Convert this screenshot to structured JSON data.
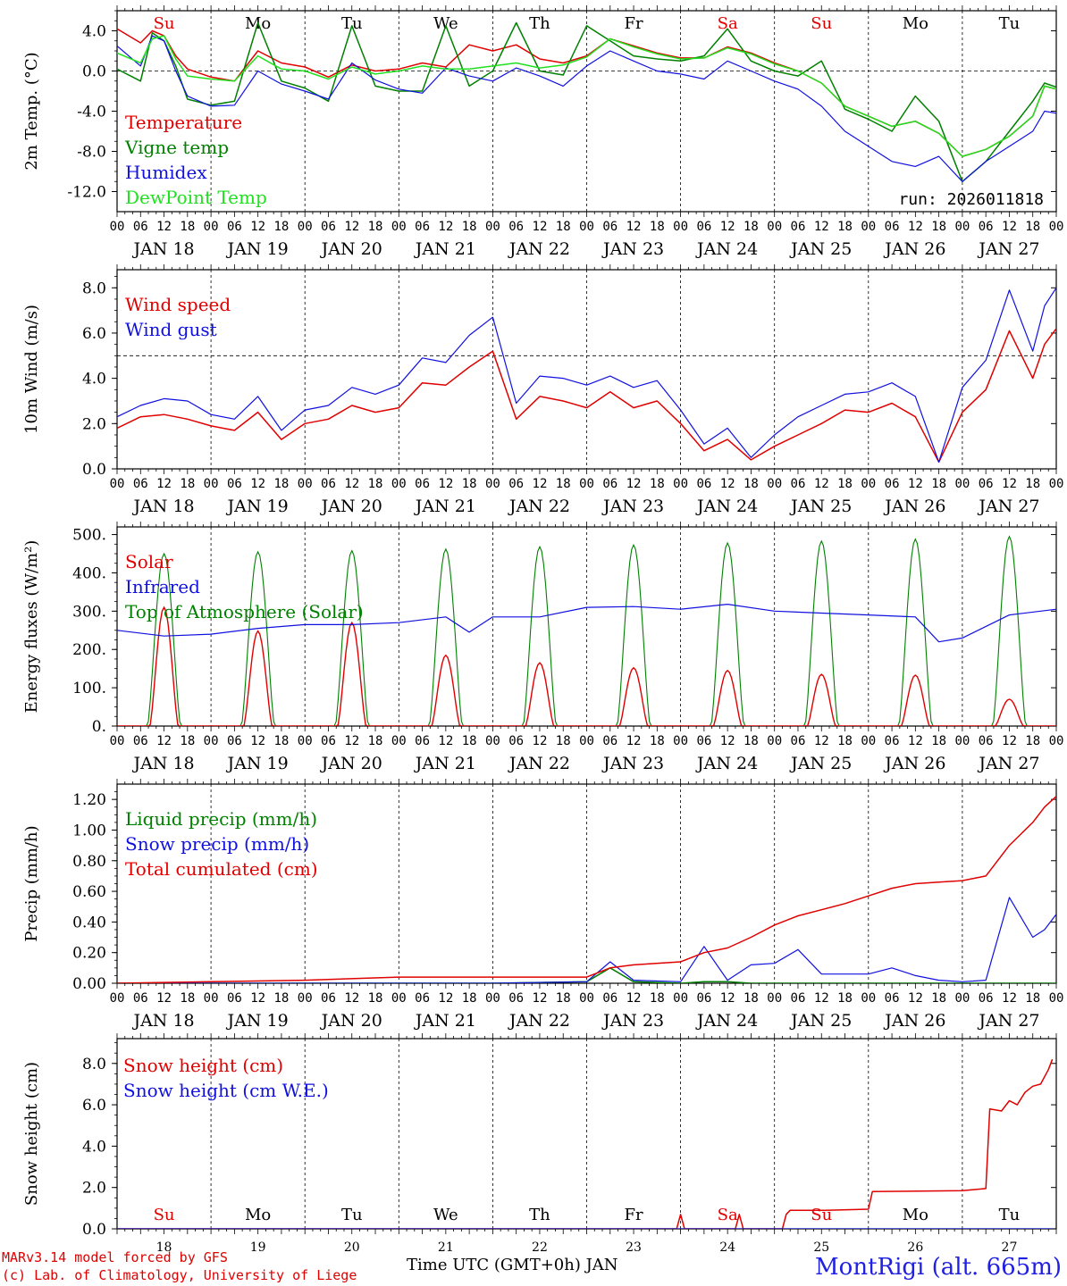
{
  "station": "MontRigi (alt. 665m)",
  "run_label": "run: 2026011818",
  "credit_line1": "MARv3.14 model forced by GFS",
  "credit_line2": "(c) Lab. of Climatology, University of Liege",
  "x_title": "Time UTC (GMT+0h) JAN",
  "colors": {
    "red": "#e00000",
    "green": "#008000",
    "blue": "#1010e0",
    "lightgreen": "#20e020",
    "weekend": "#e00000"
  },
  "days": [
    {
      "label": "JAN 18",
      "short": "18",
      "weekday": "Su",
      "weekend": true
    },
    {
      "label": "JAN 19",
      "short": "19",
      "weekday": "Mo",
      "weekend": false
    },
    {
      "label": "JAN 20",
      "short": "20",
      "weekday": "Tu",
      "weekend": false
    },
    {
      "label": "JAN 21",
      "short": "21",
      "weekday": "We",
      "weekend": false
    },
    {
      "label": "JAN 22",
      "short": "22",
      "weekday": "Th",
      "weekend": false
    },
    {
      "label": "JAN 23",
      "short": "23",
      "weekday": "Fr",
      "weekend": false
    },
    {
      "label": "JAN 24",
      "short": "24",
      "weekday": "Sa",
      "weekend": true
    },
    {
      "label": "JAN 25",
      "short": "25",
      "weekday": "Su",
      "weekend": true
    },
    {
      "label": "JAN 26",
      "short": "26",
      "weekday": "Mo",
      "weekend": false
    },
    {
      "label": "JAN 27",
      "short": "27",
      "weekday": "Tu",
      "weekend": false
    }
  ],
  "hour_ticks": [
    "00",
    "06",
    "12",
    "18"
  ],
  "chart_data": [
    {
      "type": "line",
      "title": "2m Temperature",
      "ylabel": "2m Temp. (°C)",
      "ylim": [
        -14,
        6
      ],
      "yticks": [
        4,
        0,
        -4,
        -8,
        -12
      ],
      "ytick_labels": [
        "4.0",
        "0.0",
        "-4.0",
        "-8.0",
        "-12.0"
      ],
      "ref_line": 0,
      "x_unit": "hours since JAN 18 00 UTC",
      "x": [
        0,
        6,
        9,
        12,
        15,
        18,
        24,
        30,
        36,
        42,
        48,
        54,
        60,
        66,
        72,
        78,
        84,
        90,
        96,
        102,
        108,
        114,
        120,
        126,
        132,
        138,
        144,
        150,
        156,
        162,
        168,
        174,
        180,
        186,
        192,
        198,
        204,
        210,
        216,
        222,
        228,
        234,
        237,
        240
      ],
      "series": [
        {
          "name": "Temperature",
          "color": "#e00000",
          "values": [
            4.2,
            2.8,
            4.0,
            3.5,
            1.5,
            0.2,
            -0.6,
            -1.0,
            2.0,
            0.8,
            0.4,
            -0.6,
            0.6,
            0.0,
            0.2,
            0.8,
            0.4,
            2.6,
            2.0,
            2.6,
            1.2,
            0.8,
            1.5,
            3.2,
            2.5,
            1.8,
            1.3,
            1.3,
            2.4,
            1.8,
            0.8,
            0.0,
            -1.2,
            -3.5,
            -4.5,
            -5.5,
            -5.0,
            -6.2,
            -8.5,
            -7.8,
            -6.5,
            -4.5,
            -1.5,
            -1.8
          ]
        },
        {
          "name": "Vigne temp",
          "color": "#008000",
          "values": [
            0.2,
            -1.0,
            3.8,
            3.0,
            0.5,
            -2.8,
            -3.4,
            -3.0,
            4.8,
            -1.0,
            -1.7,
            -3.0,
            4.5,
            -1.5,
            -2.0,
            -2.0,
            4.5,
            -1.5,
            0.0,
            4.8,
            0.0,
            -0.4,
            4.5,
            3.0,
            1.5,
            1.2,
            1.0,
            1.5,
            4.2,
            1.0,
            0.0,
            -0.5,
            1.0,
            -3.8,
            -4.8,
            -6.0,
            -2.5,
            -5.0,
            -11.0,
            -9.0,
            -6.0,
            -3.0,
            -1.2,
            -1.6
          ]
        },
        {
          "name": "Humidex",
          "color": "#1010e0",
          "values": [
            2.5,
            0.5,
            3.5,
            3.0,
            0.0,
            -2.5,
            -3.5,
            -3.4,
            0.0,
            -1.3,
            -2.0,
            -2.8,
            0.8,
            -0.9,
            -1.8,
            -2.2,
            0.3,
            -0.5,
            -1.0,
            0.3,
            -0.5,
            -1.5,
            0.5,
            2.0,
            1.0,
            0.0,
            -0.3,
            -0.8,
            1.0,
            0.0,
            -1.0,
            -1.8,
            -3.5,
            -6.0,
            -7.5,
            -9.0,
            -9.5,
            -8.5,
            -11.0,
            -9.0,
            -7.5,
            -6.0,
            -4.0,
            -4.2
          ]
        },
        {
          "name": "DewPoint Temp",
          "color": "#20e020",
          "values": [
            1.8,
            0.8,
            3.2,
            3.5,
            1.2,
            -0.5,
            -0.8,
            -1.0,
            1.5,
            0.2,
            0.0,
            -0.8,
            0.4,
            -0.3,
            0.0,
            0.5,
            0.2,
            0.2,
            0.5,
            0.8,
            0.3,
            0.6,
            1.4,
            3.2,
            2.4,
            1.7,
            1.2,
            1.3,
            2.3,
            1.7,
            0.7,
            0.0,
            -1.2,
            -3.5,
            -4.5,
            -5.5,
            -5.0,
            -6.2,
            -8.5,
            -7.8,
            -6.5,
            -4.5,
            -1.5,
            -1.8
          ]
        }
      ]
    },
    {
      "type": "line",
      "title": "10m Wind",
      "ylabel": "10m Wind (m/s)",
      "ylim": [
        0,
        8.8
      ],
      "yticks": [
        0,
        2,
        4,
        6,
        8
      ],
      "ytick_labels": [
        "0.0",
        "2.0",
        "4.0",
        "6.0",
        "8.0"
      ],
      "ref_line": 5,
      "x_unit": "hours since JAN 18 00 UTC",
      "x": [
        0,
        6,
        12,
        18,
        24,
        30,
        36,
        42,
        48,
        54,
        60,
        66,
        72,
        78,
        84,
        90,
        96,
        102,
        108,
        114,
        120,
        126,
        132,
        138,
        144,
        150,
        156,
        162,
        168,
        174,
        180,
        186,
        192,
        198,
        204,
        210,
        216,
        222,
        228,
        234,
        237,
        240
      ],
      "series": [
        {
          "name": "Wind speed",
          "color": "#e00000",
          "values": [
            1.8,
            2.3,
            2.4,
            2.2,
            1.9,
            1.7,
            2.5,
            1.3,
            2.0,
            2.2,
            2.8,
            2.5,
            2.7,
            3.8,
            3.7,
            4.5,
            5.2,
            2.2,
            3.2,
            3.0,
            2.7,
            3.4,
            2.7,
            3.0,
            2.0,
            0.8,
            1.3,
            0.4,
            1.0,
            1.5,
            2.0,
            2.6,
            2.5,
            2.9,
            2.3,
            0.3,
            2.5,
            3.5,
            6.1,
            4.0,
            5.5,
            6.2
          ]
        },
        {
          "name": "Wind gust",
          "color": "#1010e0",
          "values": [
            2.3,
            2.8,
            3.1,
            3.0,
            2.4,
            2.2,
            3.2,
            1.7,
            2.6,
            2.8,
            3.6,
            3.3,
            3.7,
            4.9,
            4.7,
            5.9,
            6.7,
            2.9,
            4.1,
            4.0,
            3.7,
            4.1,
            3.6,
            3.9,
            2.6,
            1.1,
            1.8,
            0.5,
            1.5,
            2.3,
            2.8,
            3.3,
            3.4,
            3.8,
            3.2,
            0.3,
            3.6,
            4.8,
            7.9,
            5.2,
            7.2,
            8.0
          ]
        }
      ]
    },
    {
      "type": "line",
      "title": "Energy fluxes",
      "ylabel": "Energy fluxes (W/m²)",
      "ylim": [
        0,
        520
      ],
      "yticks": [
        0,
        100,
        200,
        300,
        400,
        500
      ],
      "ytick_labels": [
        "0.",
        "100.",
        "200.",
        "300.",
        "400.",
        "500."
      ],
      "ref_line": null,
      "daily_peaks": {
        "Top of Atmosphere (Solar)": [
          450,
          455,
          458,
          462,
          468,
          473,
          478,
          483,
          488,
          495
        ],
        "Solar": [
          310,
          248,
          270,
          185,
          165,
          152,
          145,
          135,
          133,
          70
        ]
      },
      "x_unit": "hours since JAN 18 00 UTC",
      "x": [
        0,
        12,
        24,
        36,
        48,
        60,
        72,
        84,
        90,
        96,
        108,
        120,
        132,
        144,
        156,
        168,
        180,
        192,
        204,
        210,
        216,
        228,
        240
      ],
      "series": [
        {
          "name": "Infrared",
          "color": "#1010e0",
          "values": [
            250,
            235,
            240,
            255,
            265,
            265,
            270,
            285,
            245,
            285,
            285,
            310,
            312,
            305,
            318,
            300,
            295,
            290,
            285,
            220,
            230,
            290,
            305
          ]
        }
      ]
    },
    {
      "type": "line",
      "title": "Precipitation",
      "ylabel": "Precip (mm/h)",
      "ylim": [
        0,
        1.3
      ],
      "yticks": [
        0,
        0.2,
        0.4,
        0.6,
        0.8,
        1.0,
        1.2
      ],
      "ytick_labels": [
        "0.00",
        "0.20",
        "0.40",
        "0.60",
        "0.80",
        "1.00",
        "1.20"
      ],
      "ref_line": null,
      "x_unit": "hours since JAN 18 00 UTC",
      "x": [
        0,
        24,
        48,
        72,
        84,
        96,
        120,
        126,
        132,
        144,
        150,
        156,
        162,
        168,
        174,
        180,
        186,
        192,
        198,
        204,
        210,
        216,
        222,
        228,
        234,
        237,
        240
      ],
      "series": [
        {
          "name": "Liquid precip (mm/h)",
          "color": "#008000",
          "values": [
            0,
            0,
            0,
            0,
            0,
            0,
            0.01,
            0.1,
            0.01,
            0,
            0.01,
            0.01,
            0,
            0,
            0,
            0,
            0,
            0,
            0,
            0,
            0,
            0,
            0,
            0,
            0,
            0,
            0
          ]
        },
        {
          "name": "Snow precip (mm/h)",
          "color": "#1010e0",
          "values": [
            0,
            0,
            0,
            0,
            0,
            0,
            0.01,
            0.14,
            0.02,
            0.01,
            0.24,
            0.02,
            0.12,
            0.13,
            0.22,
            0.06,
            0.06,
            0.06,
            0.1,
            0.05,
            0.02,
            0.01,
            0.02,
            0.56,
            0.3,
            0.35,
            0.45
          ]
        },
        {
          "name": "Total cumulated (cm)",
          "color": "#e00000",
          "values": [
            0,
            0.01,
            0.02,
            0.04,
            0.04,
            0.04,
            0.04,
            0.1,
            0.12,
            0.14,
            0.2,
            0.23,
            0.3,
            0.38,
            0.44,
            0.48,
            0.52,
            0.57,
            0.62,
            0.65,
            0.66,
            0.67,
            0.7,
            0.9,
            1.05,
            1.15,
            1.22
          ]
        }
      ]
    },
    {
      "type": "line",
      "title": "Snow height",
      "ylabel": "Snow height (cm)",
      "ylim": [
        0,
        9.2
      ],
      "yticks": [
        0,
        2,
        4,
        6,
        8
      ],
      "ytick_labels": [
        "0.0",
        "2.0",
        "4.0",
        "6.0",
        "8.0"
      ],
      "ref_line": null,
      "x_unit": "hours since JAN 18 00 UTC",
      "x": [
        0,
        143,
        144,
        145,
        158,
        159,
        160,
        170,
        171,
        172,
        180,
        181,
        192,
        193,
        216,
        222,
        223,
        226,
        228,
        230,
        232,
        234,
        236,
        238,
        239
      ],
      "series": [
        {
          "name": "Snow height (cm)",
          "color": "#e00000",
          "values": [
            0,
            0,
            0.7,
            0,
            0,
            0.7,
            0,
            0,
            0.7,
            0.9,
            0.9,
            0.9,
            0.95,
            1.8,
            1.85,
            1.95,
            5.8,
            5.7,
            6.2,
            6.0,
            6.6,
            6.9,
            7.0,
            7.7,
            8.2
          ]
        },
        {
          "name": "Snow height (cm W.E.)",
          "color": "#1010e0",
          "values": [
            0,
            0,
            0,
            0,
            0,
            0,
            0,
            0,
            0,
            0,
            0,
            0,
            0,
            0,
            0,
            0,
            0,
            0,
            0,
            0,
            0,
            0,
            0,
            0,
            0
          ]
        }
      ]
    }
  ]
}
